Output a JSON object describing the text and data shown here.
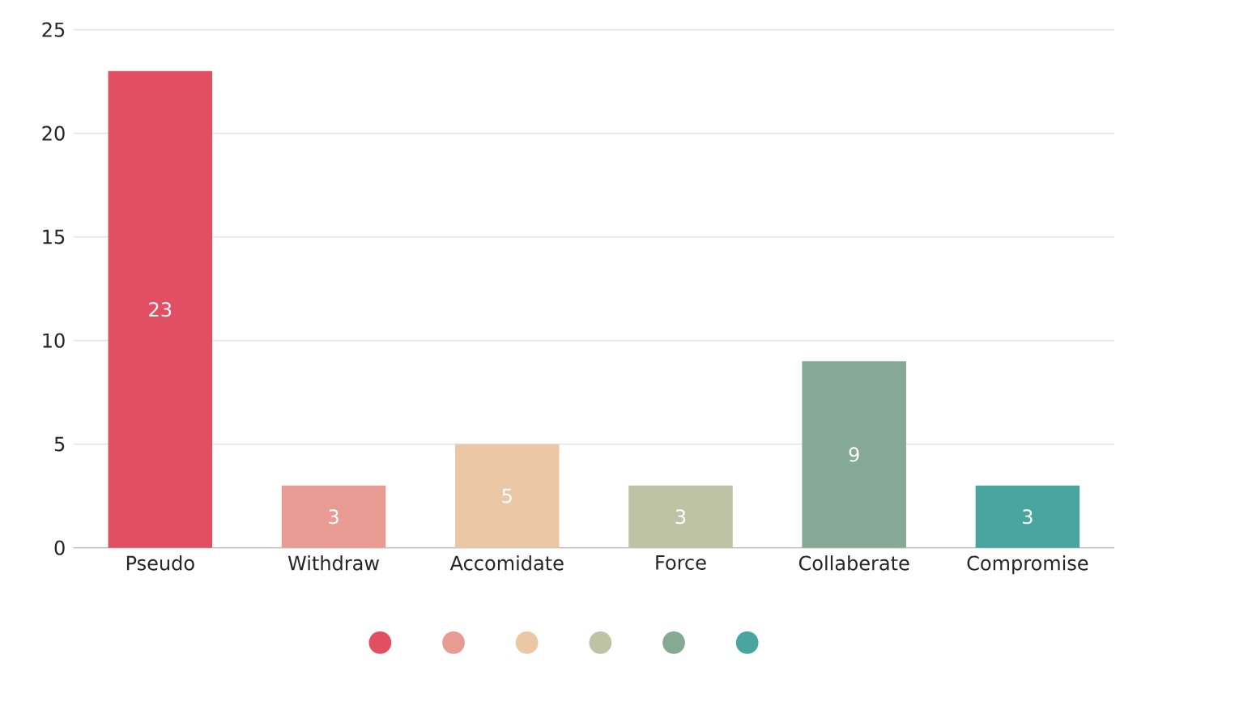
{
  "chart_data": {
    "type": "bar",
    "categories": [
      "Pseudo",
      "Withdraw",
      "Accomidate",
      "Force",
      "Collaberate",
      "Compromise"
    ],
    "values": [
      23,
      3,
      5,
      3,
      9,
      3
    ],
    "colors": [
      "#e34f62",
      "#e89b92",
      "#ecc7a6",
      "#bfc3a6",
      "#86a996",
      "#48a5a0"
    ],
    "ylim": [
      0,
      25
    ],
    "yticks": [
      0,
      5,
      10,
      15,
      20,
      25
    ],
    "grid": "y",
    "data_labels": true
  }
}
